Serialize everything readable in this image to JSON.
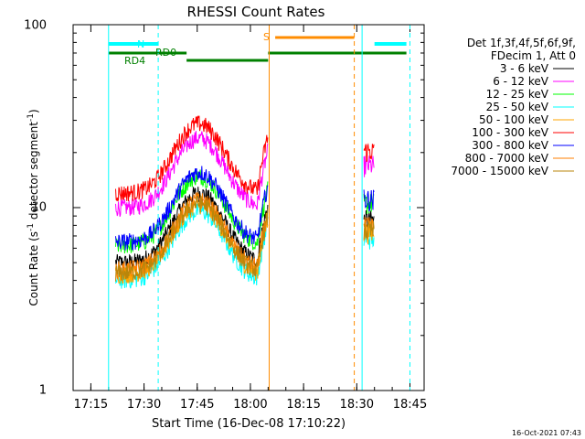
{
  "chart_data": {
    "type": "line",
    "title": "RHESSI Count Rates",
    "xlabel": "Start Time (16-Dec-08 17:10:22)",
    "ylabel": "Count Rate (s",
    "ylabel_sup": "-1",
    "ylabel_tail": " detector segment",
    "ylabel_tail_sup": "-1",
    "ylabel_close": ")",
    "yscale": "log",
    "ylim": [
      1,
      100
    ],
    "xlim": [
      "17:10",
      "18:49"
    ],
    "y_ticks": [
      "1",
      "10",
      "100"
    ],
    "x_ticks": [
      "17:15",
      "17:30",
      "17:45",
      "18:00",
      "18:15",
      "18:30",
      "18:45"
    ],
    "x_tick_minutes": [
      5,
      20,
      35,
      50,
      65,
      80,
      95
    ],
    "timestamp": "16-Oct-2021 07:43",
    "legend": {
      "header1": "Det 1f,3f,4f,5f,6f,9f,",
      "header2": "FDecim 1, Att 0",
      "placement": "right"
    },
    "series": [
      {
        "name": "3 - 6 keV",
        "color": "#000000",
        "base": 5.0
      },
      {
        "name": "6 - 12 keV",
        "color": "#ff00ff",
        "base": 10.0
      },
      {
        "name": "12 - 25 keV",
        "color": "#00ff00",
        "base": 6.2
      },
      {
        "name": "25 - 50 keV",
        "color": "#00ffff",
        "base": 4.0
      },
      {
        "name": "50 - 100 keV",
        "color": "#ffa500",
        "base": 4.3
      },
      {
        "name": "100 - 300 keV",
        "color": "#ff0000",
        "base": 12.0
      },
      {
        "name": "300 - 800 keV",
        "color": "#0000ff",
        "base": 6.5
      },
      {
        "name": "800 - 7000 keV",
        "color": "#ff7f00",
        "base": 4.6
      },
      {
        "name": "7000 - 15000 keV",
        "color": "#b8860b",
        "base": 4.4
      }
    ],
    "annotations": [
      {
        "text": "N",
        "color": "#00ffff"
      },
      {
        "text": "RD0",
        "color": "#008000"
      },
      {
        "text": "RD4",
        "color": "#008000"
      },
      {
        "text": "S",
        "color": "#ff8c00"
      }
    ],
    "state_bars": {
      "night": [
        {
          "from": 10,
          "to": 24
        },
        {
          "from": 85,
          "to": 94
        }
      ],
      "decim": [
        {
          "from": 10,
          "to": 24,
          "label": "RD4"
        },
        {
          "from": 24,
          "to": 32,
          "label": "RD0"
        },
        {
          "from": 32,
          "to": 55
        },
        {
          "from": 55,
          "to": 94
        }
      ],
      "saa": [
        {
          "from": 57,
          "to": 80
        }
      ]
    },
    "vlines": [
      {
        "t": 10,
        "color": "#00ffff",
        "dash": false
      },
      {
        "t": 24,
        "color": "#00ffff",
        "dash": true
      },
      {
        "t": 55.3,
        "color": "#ff8c00",
        "dash": false
      },
      {
        "t": 79.3,
        "color": "#ff8c00",
        "dash": true
      },
      {
        "t": 81.5,
        "color": "#00ffff",
        "dash": false
      },
      {
        "t": 95,
        "color": "#00ffff",
        "dash": true
      }
    ]
  }
}
